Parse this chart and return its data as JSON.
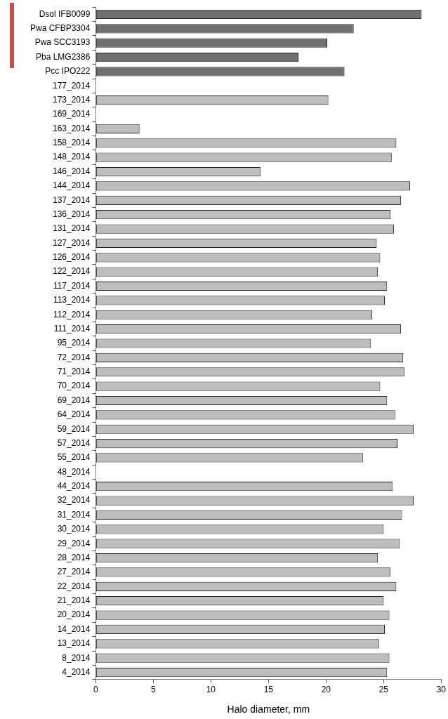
{
  "chart_data": {
    "type": "bar",
    "orientation": "horizontal",
    "xlabel": "Halo diameter, mm",
    "categories": [
      "Dsol IFB0099",
      "Pwa CFBP3304",
      "Pwa SCC3193",
      "Pba LMG2386",
      "Pcc IPO222",
      "177_2014",
      "173_2014",
      "169_2014",
      "163_2014",
      "158_2014",
      "148_2014",
      "146_2014",
      "144_2014",
      "137_2014",
      "136_2014",
      "131_2014",
      "127_2014",
      "126_2014",
      "122_2014",
      "117_2014",
      "113_2014",
      "112_2014",
      "111_2014",
      "95_2014",
      "72_2014",
      "71_2014",
      "70_2014",
      "69_2014",
      "64_2014",
      "59_2014",
      "57_2014",
      "55_2014",
      "48_2014",
      "44_2014",
      "32_2014",
      "31_2014",
      "30_2014",
      "29_2014",
      "28_2014",
      "27_2014",
      "22_2014",
      "21_2014",
      "20_2014",
      "14_2014",
      "13_2014",
      "8_2014",
      "4_2014"
    ],
    "values": [
      28.3,
      22.4,
      20.1,
      17.6,
      21.6,
      null,
      20.2,
      null,
      3.8,
      26.1,
      25.7,
      14.3,
      27.3,
      26.5,
      25.6,
      25.9,
      24.4,
      24.7,
      24.5,
      25.3,
      25.1,
      24.0,
      26.5,
      23.9,
      26.7,
      26.8,
      24.7,
      25.3,
      26.0,
      27.6,
      26.2,
      23.2,
      null,
      25.8,
      27.6,
      26.6,
      25.0,
      26.4,
      24.5,
      25.6,
      26.1,
      25.0,
      25.5,
      25.1,
      24.6,
      25.5,
      25.3
    ],
    "colors": [
      "#707070",
      "#707070",
      "#707070",
      "#707070",
      "#707070",
      "#bdbdbd",
      "#bdbdbd",
      "#bdbdbd",
      "#bdbdbd",
      "#bdbdbd",
      "#bdbdbd",
      "#bdbdbd",
      "#bdbdbd",
      "#bdbdbd",
      "#bdbdbd",
      "#bdbdbd",
      "#bdbdbd",
      "#bdbdbd",
      "#bdbdbd",
      "#bdbdbd",
      "#bdbdbd",
      "#bdbdbd",
      "#bdbdbd",
      "#bdbdbd",
      "#bdbdbd",
      "#bdbdbd",
      "#bdbdbd",
      "#bdbdbd",
      "#bdbdbd",
      "#bdbdbd",
      "#bdbdbd",
      "#bdbdbd",
      "#bdbdbd",
      "#bdbdbd",
      "#bdbdbd",
      "#bdbdbd",
      "#bdbdbd",
      "#bdbdbd",
      "#bdbdbd",
      "#bdbdbd",
      "#bdbdbd",
      "#bdbdbd",
      "#bdbdbd",
      "#bdbdbd",
      "#bdbdbd",
      "#bdbdbd",
      "#bdbdbd"
    ],
    "xlim": [
      0,
      30
    ],
    "xticks": [
      0,
      5,
      10,
      15,
      20,
      25,
      30
    ],
    "grid": false,
    "legend": false
  }
}
